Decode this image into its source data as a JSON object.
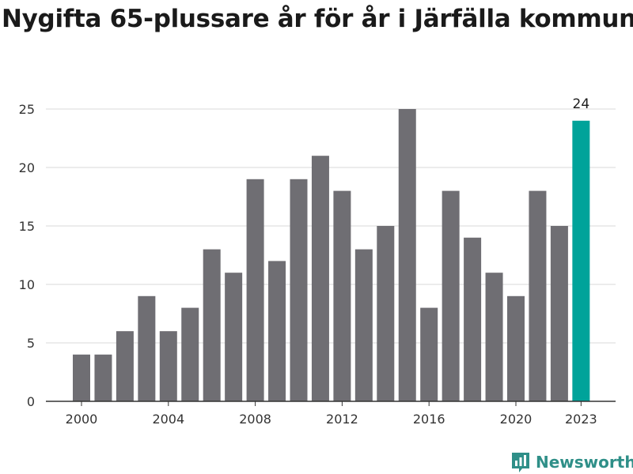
{
  "chart_data": {
    "type": "bar",
    "title": "Nygifta 65-plussare år för år i Järfälla kommun",
    "xlabel": "",
    "ylabel": "",
    "ylim": [
      0,
      25
    ],
    "yticks": [
      0,
      5,
      10,
      15,
      20,
      25
    ],
    "xtick_labels": [
      "2000",
      "2004",
      "2008",
      "2012",
      "2016",
      "2020",
      "2023"
    ],
    "categories": [
      "2000",
      "2001",
      "2002",
      "2003",
      "2004",
      "2005",
      "2006",
      "2007",
      "2008",
      "2009",
      "2010",
      "2011",
      "2012",
      "2013",
      "2014",
      "2015",
      "2016",
      "2017",
      "2018",
      "2019",
      "2020",
      "2021",
      "2022",
      "2023"
    ],
    "values": [
      4,
      4,
      6,
      9,
      6,
      8,
      13,
      11,
      19,
      12,
      19,
      21,
      18,
      13,
      15,
      25,
      8,
      18,
      14,
      11,
      9,
      18,
      15,
      24
    ],
    "highlight": {
      "category": "2023",
      "label": "24"
    },
    "colors": {
      "bar": "#6f6e73",
      "highlight": "#00a39a",
      "grid": "#d9d9d9",
      "axis": "#333333"
    },
    "grid": true
  },
  "brand": {
    "name": "Newsworthy",
    "icon": "bar-chart-logo-icon",
    "color": "#2f8f88"
  }
}
